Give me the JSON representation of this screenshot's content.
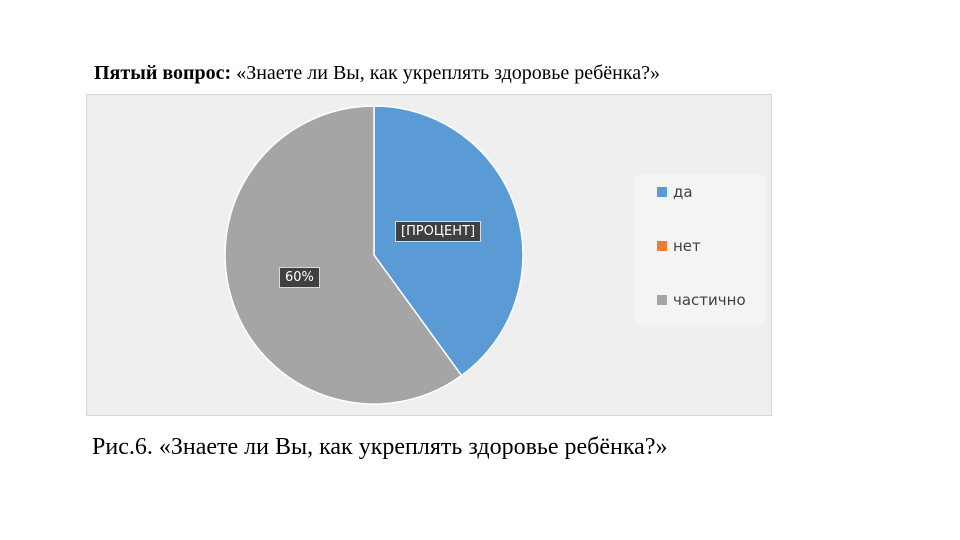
{
  "heading": {
    "bold": "Пятый вопрос:",
    "text": " «Знаете ли Вы, как укреплять здоровье ребёнка?»"
  },
  "caption": "Рис.6. «Знаете ли Вы, как укреплять здоровье ребёнка?»",
  "chart_data": {
    "type": "pie",
    "title": "",
    "categories": [
      "да",
      "нет",
      "частично"
    ],
    "values": [
      40,
      0,
      60
    ],
    "colors": [
      "#5B9BD5",
      "#ED7D31",
      "#A5A5A5"
    ],
    "data_labels": [
      "[ПРОЦЕНТ]",
      "",
      "60%"
    ],
    "legend_position": "right"
  }
}
